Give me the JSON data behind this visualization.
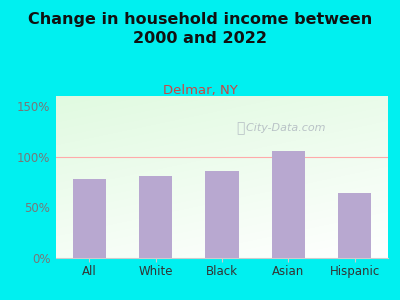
{
  "categories": [
    "All",
    "White",
    "Black",
    "Asian",
    "Hispanic"
  ],
  "values": [
    0.78,
    0.81,
    0.86,
    1.06,
    0.64
  ],
  "bar_color": "#b8a8d0",
  "title": "Change in household income between\n2000 and 2022",
  "subtitle": "Delmar, NY",
  "subtitle_color": "#cc4444",
  "title_color": "#111111",
  "title_fontsize": 11.5,
  "subtitle_fontsize": 9.5,
  "bg_color": "#00f0f0",
  "plot_bg_color_topleft": "#d8eed8",
  "plot_bg_color_topright": "#eef8ee",
  "plot_bg_color_bottom": "#ffffff",
  "ylim": [
    0,
    1.6
  ],
  "yticks": [
    0,
    0.5,
    1.0,
    1.5
  ],
  "ytick_labels": [
    "0%",
    "50%",
    "100%",
    "150%"
  ],
  "ref_line_y": 1.0,
  "ref_line_color": "#ffaaaa",
  "watermark": "City-Data.com",
  "watermark_color": "#b0b8c0",
  "ylabel_color": "#777777",
  "xlabel_color": "#333333"
}
